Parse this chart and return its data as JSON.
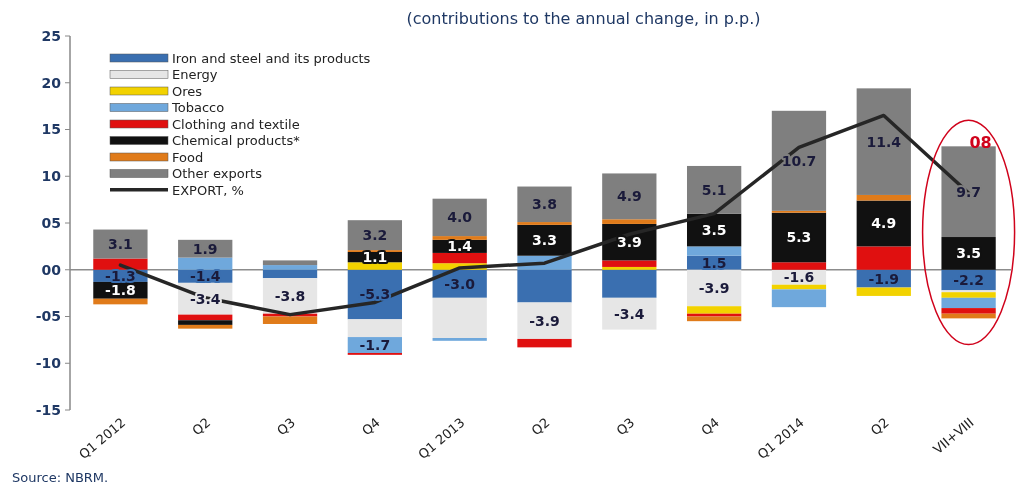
{
  "chart_data": {
    "type": "bar",
    "stacked": true,
    "title": "(contributions to the annual change, in p.p.)",
    "categories": [
      "Q1 2012",
      "Q2",
      "Q3",
      "Q4",
      "Q1 2013",
      "Q2",
      "Q3",
      "Q4",
      "Q1 2014",
      "Q2",
      "VII+VIII"
    ],
    "series": [
      {
        "name": "Iron and steel and its products",
        "color": "#3a6fb0",
        "values": [
          -1.3,
          -1.4,
          -0.9,
          -5.3,
          -3.0,
          -3.5,
          -3.0,
          1.5,
          null,
          -1.9,
          -2.2
        ],
        "value_labels": [
          "-1.3",
          "-1.4",
          null,
          "-5.3",
          "-3.0",
          null,
          null,
          "1.5",
          null,
          "-1.9",
          "-2.2"
        ]
      },
      {
        "name": "Energy",
        "color": "#e6e6e6",
        "values": [
          null,
          -3.4,
          -3.8,
          -1.9,
          -4.3,
          -3.9,
          -3.4,
          -3.9,
          -1.6,
          null,
          -0.2
        ],
        "value_labels": [
          null,
          "-3.4",
          "-3.8",
          null,
          null,
          "-3.9",
          "-3.4",
          "-3.9",
          "-1.6",
          null,
          null
        ]
      },
      {
        "name": "Ores",
        "color": "#f2d200",
        "values": [
          null,
          null,
          null,
          0.8,
          0.7,
          null,
          0.3,
          -0.8,
          -0.5,
          -0.9,
          -0.6
        ]
      },
      {
        "name": "Tobacco",
        "color": "#6fa8dc",
        "values": [
          null,
          1.3,
          0.5,
          -1.7,
          -0.3,
          1.5,
          null,
          1.0,
          -1.9,
          null,
          -1.1
        ],
        "value_labels": [
          null,
          null,
          null,
          "-1.7",
          null,
          null,
          null,
          null,
          null,
          null,
          null
        ]
      },
      {
        "name": "Clothing and textile",
        "color": "#e01010",
        "values": [
          1.2,
          -0.6,
          -0.3,
          -0.2,
          1.1,
          -0.9,
          0.7,
          -0.3,
          0.8,
          2.5,
          -0.6
        ]
      },
      {
        "name": "Chemical products*",
        "color": "#111111",
        "values": [
          -1.8,
          -0.5,
          null,
          1.1,
          1.4,
          3.3,
          3.9,
          3.5,
          5.3,
          4.9,
          3.5
        ],
        "value_labels": [
          "-1.8",
          null,
          null,
          "1.1",
          "1.4",
          "3.3",
          "3.9",
          "3.5",
          "5.3",
          "4.9",
          "3.5"
        ]
      },
      {
        "name": "Food",
        "color": "#e07b1a",
        "values": [
          -0.6,
          -0.4,
          -0.8,
          0.2,
          0.4,
          0.3,
          0.5,
          -0.5,
          0.2,
          0.6,
          -0.5
        ]
      },
      {
        "name": "Other exports",
        "color": "#7f7f7f",
        "values": [
          3.1,
          1.9,
          0.5,
          3.2,
          4.0,
          3.8,
          4.9,
          5.1,
          10.7,
          11.4,
          9.7
        ],
        "value_labels": [
          "3.1",
          "1.9",
          null,
          "3.2",
          "4.0",
          "3.8",
          "4.9",
          "5.1",
          "10.7",
          "11.4",
          "9.7"
        ]
      },
      {
        "name": "EXPORT, %",
        "type": "line",
        "color": "#262626",
        "values": [
          0.5,
          -3.0,
          -4.8,
          -3.5,
          0.2,
          0.7,
          3.8,
          6.0,
          13.1,
          16.5,
          8.2
        ]
      }
    ],
    "ylim": [
      -15,
      25
    ],
    "yticks": [
      25,
      20,
      15,
      10,
      {
        "value": 5,
        "label": "05"
      },
      {
        "value": 0,
        "label": "00"
      },
      {
        "value": -5,
        "label": "-05"
      },
      -10,
      -15
    ],
    "ref_lines": [
      {
        "axis": "y",
        "value": 0,
        "color": "#8c8c8c"
      }
    ],
    "legend": "top left",
    "annotations": [
      {
        "text": "08",
        "x": "VII+VIII",
        "y": 13.6
      },
      "Source: NBRM."
    ]
  }
}
